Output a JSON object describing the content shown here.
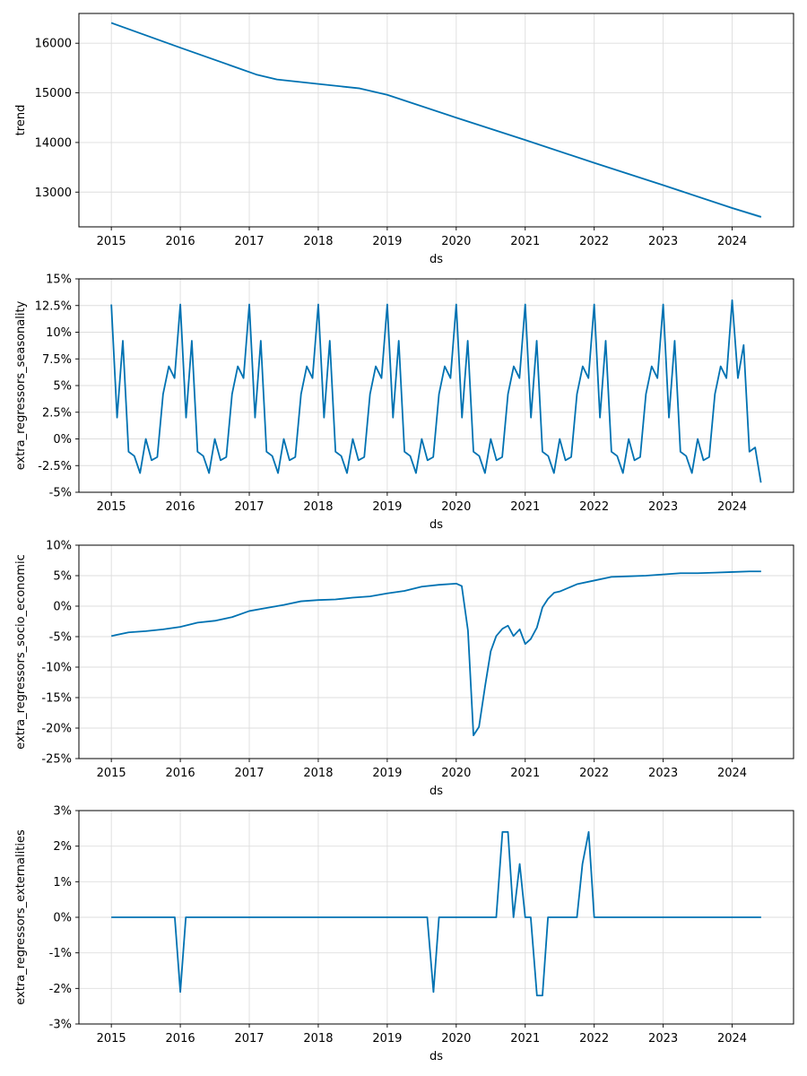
{
  "chart_data": [
    {
      "type": "line",
      "ylabel": "trend",
      "xlabel": "ds",
      "xlim": [
        2014.53,
        2024.89
      ],
      "ylim": [
        12300,
        16600
      ],
      "x_ticks": [
        2015,
        2016,
        2017,
        2018,
        2019,
        2020,
        2021,
        2022,
        2023,
        2024
      ],
      "x_tick_labels": [
        "2015",
        "2016",
        "2017",
        "2018",
        "2019",
        "2020",
        "2021",
        "2022",
        "2023",
        "2024"
      ],
      "y_ticks": [
        13000,
        14000,
        15000,
        16000
      ],
      "y_tick_labels": [
        "13000",
        "14000",
        "15000",
        "16000"
      ],
      "uncertainty_band": true,
      "x": [
        2015.0,
        2016.0,
        2017.1,
        2017.4,
        2018.0,
        2018.6,
        2019.0,
        2020.0,
        2021.0,
        2022.0,
        2023.0,
        2024.0,
        2024.42
      ],
      "y": [
        16410,
        15910,
        15370,
        15270,
        15180,
        15090,
        14960,
        14500,
        14050,
        13590,
        13140,
        12680,
        12500
      ]
    },
    {
      "type": "line",
      "ylabel": "extra_regressors_seasonality",
      "xlabel": "ds",
      "xlim": [
        2014.53,
        2024.89
      ],
      "ylim": [
        -5,
        15
      ],
      "x_ticks": [
        2015,
        2016,
        2017,
        2018,
        2019,
        2020,
        2021,
        2022,
        2023,
        2024
      ],
      "x_tick_labels": [
        "2015",
        "2016",
        "2017",
        "2018",
        "2019",
        "2020",
        "2021",
        "2022",
        "2023",
        "2024"
      ],
      "y_ticks": [
        -5,
        -2.5,
        0,
        2.5,
        5,
        7.5,
        10,
        12.5,
        15
      ],
      "y_tick_labels": [
        "-5%",
        "-2.5%",
        "0%",
        "2.5%",
        "5%",
        "7.5%",
        "10%",
        "12.5%",
        "15%"
      ],
      "pattern_12": [
        12.6,
        2.0,
        9.2,
        -1.2,
        -1.6,
        -3.2,
        0.0,
        -2.0,
        -1.7,
        4.2,
        6.8,
        5.7
      ],
      "last_year_6": [
        13.0,
        5.7,
        8.8,
        -1.2,
        -0.8,
        -4.1
      ]
    },
    {
      "type": "line",
      "ylabel": "extra_regressors_socio_economic",
      "xlabel": "ds",
      "xlim": [
        2014.53,
        2024.89
      ],
      "ylim": [
        -25,
        10
      ],
      "x_ticks": [
        2015,
        2016,
        2017,
        2018,
        2019,
        2020,
        2021,
        2022,
        2023,
        2024
      ],
      "x_tick_labels": [
        "2015",
        "2016",
        "2017",
        "2018",
        "2019",
        "2020",
        "2021",
        "2022",
        "2023",
        "2024"
      ],
      "y_ticks": [
        -25,
        -20,
        -15,
        -10,
        -5,
        0,
        5,
        10
      ],
      "y_tick_labels": [
        "-25%",
        "-20%",
        "-15%",
        "-10%",
        "-5%",
        "0%",
        "5%",
        "10%"
      ],
      "x": [
        2015.0,
        2015.25,
        2015.5,
        2015.75,
        2016.0,
        2016.25,
        2016.5,
        2016.75,
        2017.0,
        2017.25,
        2017.5,
        2017.75,
        2018.0,
        2018.25,
        2018.5,
        2018.75,
        2019.0,
        2019.25,
        2019.5,
        2019.75,
        2020.0,
        2020.08,
        2020.17,
        2020.25,
        2020.33,
        2020.42,
        2020.5,
        2020.58,
        2020.67,
        2020.75,
        2020.83,
        2020.92,
        2021.0,
        2021.08,
        2021.17,
        2021.25,
        2021.33,
        2021.42,
        2021.5,
        2021.75,
        2022.0,
        2022.25,
        2022.5,
        2022.75,
        2023.0,
        2023.25,
        2023.5,
        2023.75,
        2024.0,
        2024.25,
        2024.42
      ],
      "y": [
        -4.9,
        -4.3,
        -4.1,
        -3.8,
        -3.4,
        -2.7,
        -2.4,
        -1.8,
        -0.8,
        -0.3,
        0.2,
        0.8,
        1.0,
        1.1,
        1.4,
        1.6,
        2.1,
        2.5,
        3.2,
        3.5,
        3.7,
        3.3,
        -4.0,
        -21.2,
        -19.8,
        -13.0,
        -7.4,
        -4.9,
        -3.7,
        -3.2,
        -4.9,
        -3.8,
        -6.2,
        -5.4,
        -3.5,
        -0.2,
        1.2,
        2.2,
        2.4,
        3.6,
        4.2,
        4.8,
        4.9,
        5.0,
        5.2,
        5.4,
        5.4,
        5.5,
        5.6,
        5.7,
        5.7
      ]
    },
    {
      "type": "line",
      "ylabel": "extra_regressors_externalities",
      "xlabel": "ds",
      "xlim": [
        2014.53,
        2024.89
      ],
      "ylim": [
        -3,
        3
      ],
      "x_ticks": [
        2015,
        2016,
        2017,
        2018,
        2019,
        2020,
        2021,
        2022,
        2023,
        2024
      ],
      "x_tick_labels": [
        "2015",
        "2016",
        "2017",
        "2018",
        "2019",
        "2020",
        "2021",
        "2022",
        "2023",
        "2024"
      ],
      "y_ticks": [
        -3,
        -2,
        -1,
        0,
        1,
        2,
        3
      ],
      "y_tick_labels": [
        "-3%",
        "-2%",
        "-1%",
        "0%",
        "1%",
        "2%",
        "3%"
      ],
      "x": [
        2015.0,
        2015.92,
        2016.0,
        2016.08,
        2019.58,
        2019.67,
        2019.75,
        2020.58,
        2020.67,
        2020.75,
        2020.83,
        2020.92,
        2021.0,
        2021.08,
        2021.17,
        2021.25,
        2021.33,
        2021.75,
        2021.83,
        2021.92,
        2022.0,
        2024.42
      ],
      "y": [
        0,
        0,
        -2.1,
        0,
        0,
        -2.1,
        0,
        0,
        2.4,
        2.4,
        0,
        1.5,
        0,
        0,
        -2.2,
        -2.2,
        0,
        0,
        1.5,
        2.4,
        0,
        0
      ]
    }
  ]
}
